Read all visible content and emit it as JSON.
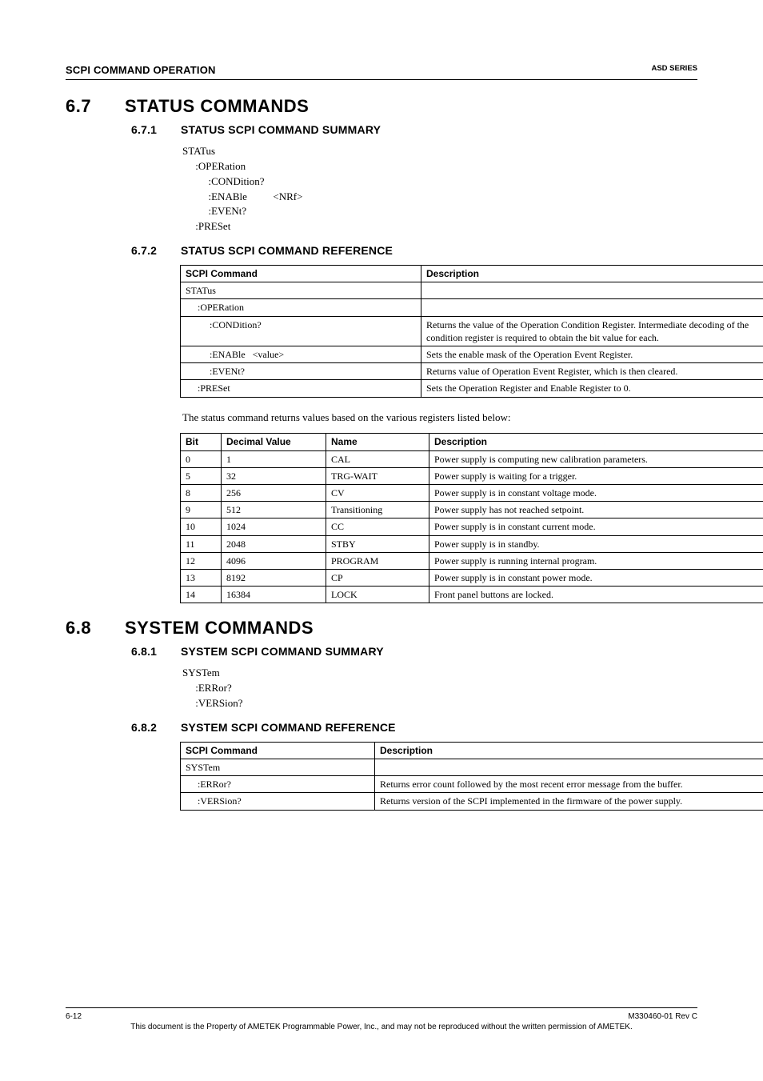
{
  "header": {
    "left": "SCPI COMMAND OPERATION",
    "right": "ASD SERIES"
  },
  "sec67": {
    "num": "6.7",
    "title": "STATUS COMMANDS",
    "s1": {
      "num": "6.7.1",
      "title_a": "STATUS SCPI C",
      "title_b": "OMMAND",
      "title_c": " S",
      "title_d": "UMMARY",
      "lines": [
        "STATus",
        "     :OPERation",
        "          :CONDition?",
        "          :ENABle          <NRf>",
        "          :EVENt?",
        "     :PRESet"
      ]
    },
    "s2": {
      "num": "6.7.2",
      "title_a": "STATUS SCPI C",
      "title_b": "OMMAND",
      "title_c": " R",
      "title_d": "EFERENCE",
      "headers": [
        "SCPI Command",
        "Description"
      ],
      "rows": [
        [
          "STATus",
          ""
        ],
        [
          "     :OPERation",
          ""
        ],
        [
          "          :CONDition?",
          "Returns the value of the Operation Condition Register. Intermediate decoding of the condition register is required to obtain the bit value for each."
        ],
        [
          "          :ENABle   <value>",
          "Sets the enable mask of the Operation Event Register."
        ],
        [
          "          :EVENt?",
          "Returns value of Operation Event Register, which is then cleared."
        ],
        [
          "     :PRESet",
          "Sets the Operation Register and Enable Register to 0."
        ]
      ],
      "bits_intro": "The status command returns values based on the various registers listed below:",
      "bits_headers": [
        "Bit",
        "Decimal Value",
        "Name",
        "Description"
      ],
      "bits_rows": [
        [
          "0",
          "1",
          "CAL",
          "Power supply is computing new calibration parameters."
        ],
        [
          "5",
          "32",
          "TRG-WAIT",
          "Power supply is waiting for a trigger."
        ],
        [
          "8",
          "256",
          "CV",
          "Power supply is in constant voltage mode."
        ],
        [
          "9",
          "512",
          "Transitioning",
          "Power supply has not reached setpoint."
        ],
        [
          "10",
          "1024",
          "CC",
          "Power supply is in constant current mode."
        ],
        [
          "11",
          "2048",
          "STBY",
          "Power supply is in standby."
        ],
        [
          "12",
          "4096",
          "PROGRAM",
          "Power supply is running internal program."
        ],
        [
          "13",
          "8192",
          "CP",
          "Power supply is in constant power mode."
        ],
        [
          "14",
          "16384",
          "LOCK",
          "Front panel buttons are locked."
        ]
      ]
    }
  },
  "sec68": {
    "num": "6.8",
    "title": "SYSTEM COMMANDS",
    "s1": {
      "num": "6.8.1",
      "title_a": "SYSTEM SCPI C",
      "title_b": "OMMAND",
      "title_c": " S",
      "title_d": "UMMARY",
      "lines": [
        "SYSTem",
        "     :ERRor?",
        "     :VERSion?"
      ]
    },
    "s2": {
      "num": "6.8.2",
      "title_a": "SYSTEM SCPI C",
      "title_b": "OMMAND",
      "title_c": " R",
      "title_d": "EFERENCE",
      "headers": [
        "SCPI Command",
        "Description"
      ],
      "rows": [
        [
          "SYSTem",
          ""
        ],
        [
          "     :ERRor?",
          "Returns error count followed by the most recent error message from the buffer."
        ],
        [
          "     :VERSion?",
          "Returns version of the SCPI implemented in the firmware of the power supply."
        ]
      ]
    }
  },
  "footer": {
    "left": "6-12",
    "right": "M330460-01 Rev C",
    "line2": "This document is the Property of AMETEK Programmable Power, Inc., and may not be reproduced without the written permission of AMETEK."
  }
}
